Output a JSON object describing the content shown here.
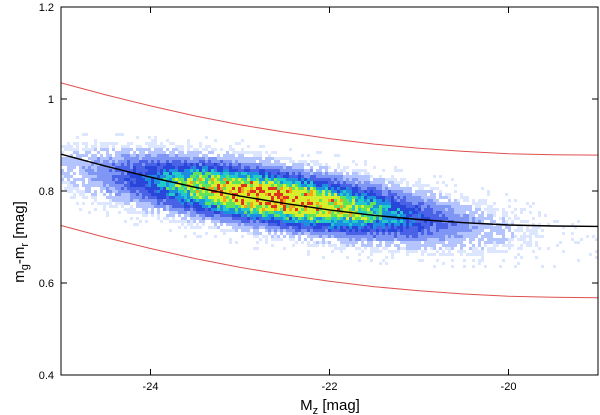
{
  "chart_data": {
    "type": "scatter",
    "title": "",
    "xlabel": {
      "main": "M",
      "sub": "z",
      "unit": " [mag]"
    },
    "ylabel": {
      "m1": "m",
      "s1": "g",
      "dash": "-m",
      "s2": "r",
      "unit": " [mag]"
    },
    "xlim": [
      -25,
      -19
    ],
    "ylim": [
      0.4,
      1.2
    ],
    "x_ticks": [
      -24,
      -22,
      -20
    ],
    "x_tick_labels": [
      "-24",
      "-22",
      "-20"
    ],
    "y_ticks": [
      0.4,
      0.6,
      0.8,
      1.0,
      1.2
    ],
    "y_tick_labels": [
      "0.4",
      "0.6",
      "0.8",
      "1",
      "1.2"
    ],
    "grid": false,
    "density": {
      "center_x": -22.7,
      "center_y": 0.79,
      "spread_along_x": 0.95,
      "spread_perp": 0.035,
      "slope": -0.028
    },
    "series": [
      {
        "role": "fit",
        "color": "#000000",
        "x": [
          -25,
          -24.5,
          -24,
          -23.5,
          -23,
          -22.5,
          -22,
          -21.5,
          -21,
          -20.5,
          -20,
          -19.5,
          -19
        ],
        "y": [
          0.88,
          0.854,
          0.83,
          0.808,
          0.789,
          0.773,
          0.759,
          0.747,
          0.738,
          0.731,
          0.726,
          0.724,
          0.723
        ]
      },
      {
        "role": "upper-bound",
        "color": "#e05050",
        "x": [
          -25,
          -24.5,
          -24,
          -23.5,
          -23,
          -22.5,
          -22,
          -21.5,
          -21,
          -20.5,
          -20,
          -19.5,
          -19
        ],
        "y": [
          1.035,
          1.009,
          0.985,
          0.963,
          0.944,
          0.928,
          0.914,
          0.902,
          0.893,
          0.886,
          0.881,
          0.879,
          0.878
        ]
      },
      {
        "role": "lower-bound",
        "color": "#e05050",
        "x": [
          -25,
          -24.5,
          -24,
          -23.5,
          -23,
          -22.5,
          -22,
          -21.5,
          -21,
          -20.5,
          -20,
          -19.5,
          -19
        ],
        "y": [
          0.725,
          0.699,
          0.675,
          0.653,
          0.634,
          0.618,
          0.604,
          0.592,
          0.583,
          0.576,
          0.571,
          0.569,
          0.568
        ]
      }
    ]
  }
}
